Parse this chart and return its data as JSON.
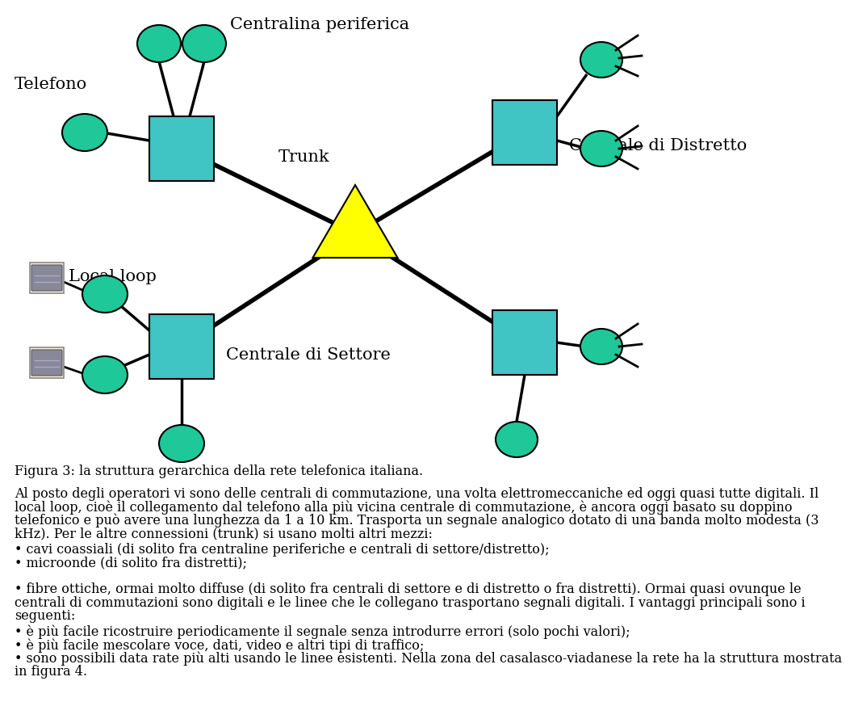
{
  "bg_color": "#ffffff",
  "cyan_color": "#40C4C4",
  "green_color": "#1EC898",
  "yellow_color": "#FFFF00",
  "figure_caption": "Figura 3: la struttura gerarchica della rete telefonica italiana.",
  "label_centralina": "Centralina periferica",
  "label_trunk": "Trunk",
  "label_distretto": "Centrale di Distretto",
  "label_settore": "Centrale di Settore",
  "label_telefono": "Telefono",
  "label_localloop": "Local loop",
  "para1_lines": [
    "Al posto degli operatori vi sono delle centrali di commutazione, una volta elettromeccaniche ed oggi quasi tutte digitali. Il",
    "local loop, cioè il collegamento dal telefono alla più vicina centrale di commutazione, è ancora oggi basato su doppino",
    "telefonico e può avere una lunghezza da 1 a 10 km. Trasporta un segnale analogico dotato di una banda molto modesta (3",
    "kHz). Per le altre connessioni (trunk) si usano molti altri mezzi:"
  ],
  "bullet1": "• cavi coassiali (di solito fra centraline periferiche e centrali di settore/distretto);",
  "bullet2": "• microonde (di solito fra distretti);",
  "fibre_lines": [
    "• fibre ottiche, ormai molto diffuse (di solito fra centrali di settore e di distretto o fra distretti). Ormai quasi ovunque le",
    "centrali di commutazioni sono digitali e le linee che le collegano trasportano segnali digitali. I vantaggi principali sono i",
    "seguenti:"
  ],
  "bullet4": "• è più facile ricostruire periodicamente il segnale senza introdurre errori (solo pochi valori);",
  "bullet5": "• è più facile mescolare voce, dati, video e altri tipi di traffico;",
  "bullet6_lines": [
    "• sono possibili data rate più alti usando le linee esistenti. Nella zona del casalasco-viadanese la rete ha la struttura mostrata",
    "in figura 4."
  ]
}
